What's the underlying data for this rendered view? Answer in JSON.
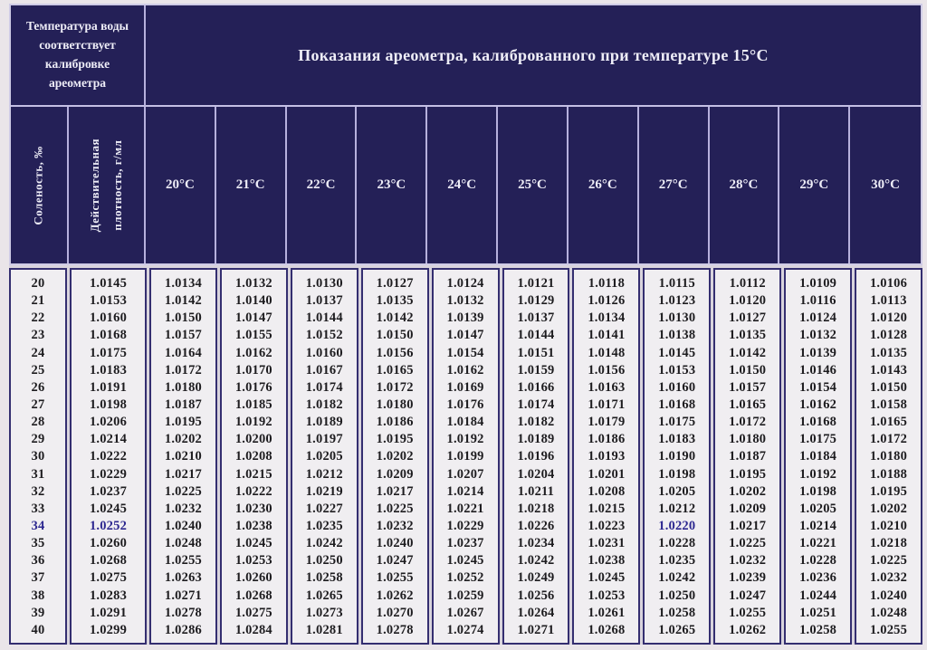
{
  "table": {
    "corner_header": "Температура воды соответствует калибровке ареометра",
    "main_header": "Показания ареометра, калиброванного при температуре 15°С",
    "salinity_header": "Соленость, ‰",
    "density_header": "Действительная плотность, г/мл",
    "temp_columns": [
      "20°С",
      "21°С",
      "22°С",
      "23°С",
      "24°С",
      "25°С",
      "26°С",
      "27°С",
      "28°С",
      "29°С",
      "30°С"
    ],
    "highlight": {
      "row_index": 14,
      "col_indices": [
        0,
        1,
        9
      ],
      "color": "#2d2890"
    },
    "colors": {
      "header_bg": "#242057",
      "data_bg": "#f0eef1",
      "border": "#342e70",
      "header_text": "#eeedf7"
    },
    "rows": [
      [
        "20",
        "1.0145",
        "1.0134",
        "1.0132",
        "1.0130",
        "1.0127",
        "1.0124",
        "1.0121",
        "1.0118",
        "1.0115",
        "1.0112",
        "1.0109",
        "1.0106"
      ],
      [
        "21",
        "1.0153",
        "1.0142",
        "1.0140",
        "1.0137",
        "1.0135",
        "1.0132",
        "1.0129",
        "1.0126",
        "1.0123",
        "1.0120",
        "1.0116",
        "1.0113"
      ],
      [
        "22",
        "1.0160",
        "1.0150",
        "1.0147",
        "1.0144",
        "1.0142",
        "1.0139",
        "1.0137",
        "1.0134",
        "1.0130",
        "1.0127",
        "1.0124",
        "1.0120"
      ],
      [
        "23",
        "1.0168",
        "1.0157",
        "1.0155",
        "1.0152",
        "1.0150",
        "1.0147",
        "1.0144",
        "1.0141",
        "1.0138",
        "1.0135",
        "1.0132",
        "1.0128"
      ],
      [
        "24",
        "1.0175",
        "1.0164",
        "1.0162",
        "1.0160",
        "1.0156",
        "1.0154",
        "1.0151",
        "1.0148",
        "1.0145",
        "1.0142",
        "1.0139",
        "1.0135"
      ],
      [
        "25",
        "1.0183",
        "1.0172",
        "1.0170",
        "1.0167",
        "1.0165",
        "1.0162",
        "1.0159",
        "1.0156",
        "1.0153",
        "1.0150",
        "1.0146",
        "1.0143"
      ],
      [
        "26",
        "1.0191",
        "1.0180",
        "1.0176",
        "1.0174",
        "1.0172",
        "1.0169",
        "1.0166",
        "1.0163",
        "1.0160",
        "1.0157",
        "1.0154",
        "1.0150"
      ],
      [
        "27",
        "1.0198",
        "1.0187",
        "1.0185",
        "1.0182",
        "1.0180",
        "1.0176",
        "1.0174",
        "1.0171",
        "1.0168",
        "1.0165",
        "1.0162",
        "1.0158"
      ],
      [
        "28",
        "1.0206",
        "1.0195",
        "1.0192",
        "1.0189",
        "1.0186",
        "1.0184",
        "1.0182",
        "1.0179",
        "1.0175",
        "1.0172",
        "1.0168",
        "1.0165"
      ],
      [
        "29",
        "1.0214",
        "1.0202",
        "1.0200",
        "1.0197",
        "1.0195",
        "1.0192",
        "1.0189",
        "1.0186",
        "1.0183",
        "1.0180",
        "1.0175",
        "1.0172"
      ],
      [
        "30",
        "1.0222",
        "1.0210",
        "1.0208",
        "1.0205",
        "1.0202",
        "1.0199",
        "1.0196",
        "1.0193",
        "1.0190",
        "1.0187",
        "1.0184",
        "1.0180"
      ],
      [
        "31",
        "1.0229",
        "1.0217",
        "1.0215",
        "1.0212",
        "1.0209",
        "1.0207",
        "1.0204",
        "1.0201",
        "1.0198",
        "1.0195",
        "1.0192",
        "1.0188"
      ],
      [
        "32",
        "1.0237",
        "1.0225",
        "1.0222",
        "1.0219",
        "1.0217",
        "1.0214",
        "1.0211",
        "1.0208",
        "1.0205",
        "1.0202",
        "1.0198",
        "1.0195"
      ],
      [
        "33",
        "1.0245",
        "1.0232",
        "1.0230",
        "1.0227",
        "1.0225",
        "1.0221",
        "1.0218",
        "1.0215",
        "1.0212",
        "1.0209",
        "1.0205",
        "1.0202"
      ],
      [
        "34",
        "1.0252",
        "1.0240",
        "1.0238",
        "1.0235",
        "1.0232",
        "1.0229",
        "1.0226",
        "1.0223",
        "1.0220",
        "1.0217",
        "1.0214",
        "1.0210"
      ],
      [
        "35",
        "1.0260",
        "1.0248",
        "1.0245",
        "1.0242",
        "1.0240",
        "1.0237",
        "1.0234",
        "1.0231",
        "1.0228",
        "1.0225",
        "1.0221",
        "1.0218"
      ],
      [
        "36",
        "1.0268",
        "1.0255",
        "1.0253",
        "1.0250",
        "1.0247",
        "1.0245",
        "1.0242",
        "1.0238",
        "1.0235",
        "1.0232",
        "1.0228",
        "1.0225"
      ],
      [
        "37",
        "1.0275",
        "1.0263",
        "1.0260",
        "1.0258",
        "1.0255",
        "1.0252",
        "1.0249",
        "1.0245",
        "1.0242",
        "1.0239",
        "1.0236",
        "1.0232"
      ],
      [
        "38",
        "1.0283",
        "1.0271",
        "1.0268",
        "1.0265",
        "1.0262",
        "1.0259",
        "1.0256",
        "1.0253",
        "1.0250",
        "1.0247",
        "1.0244",
        "1.0240"
      ],
      [
        "39",
        "1.0291",
        "1.0278",
        "1.0275",
        "1.0273",
        "1.0270",
        "1.0267",
        "1.0264",
        "1.0261",
        "1.0258",
        "1.0255",
        "1.0251",
        "1.0248"
      ],
      [
        "40",
        "1.0299",
        "1.0286",
        "1.0284",
        "1.0281",
        "1.0278",
        "1.0274",
        "1.0271",
        "1.0268",
        "1.0265",
        "1.0262",
        "1.0258",
        "1.0255"
      ]
    ]
  }
}
